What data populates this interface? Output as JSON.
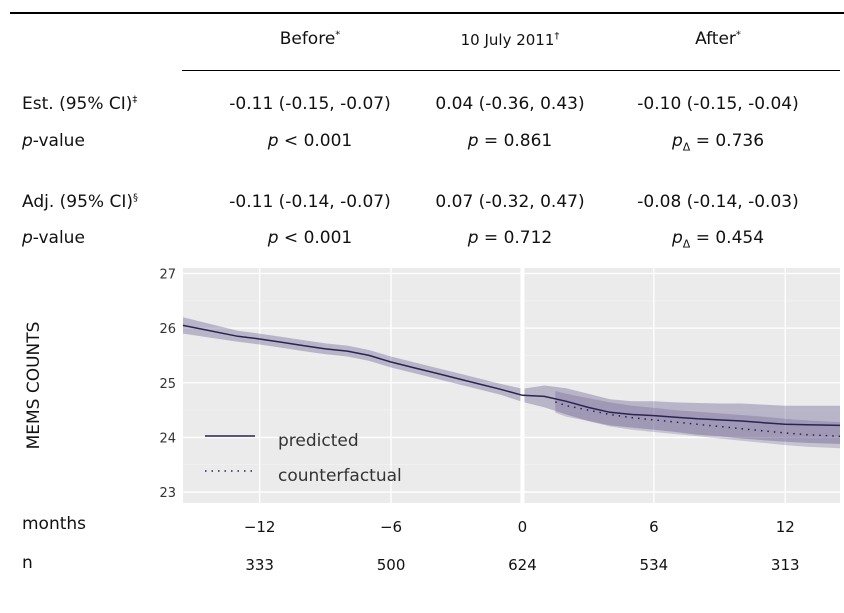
{
  "table": {
    "headers": {
      "before": "Before",
      "before_mark": "*",
      "date": "10 July 2011",
      "date_mark": "†",
      "after": "After",
      "after_mark": "*"
    },
    "est_label": "Est. (95% CI)",
    "est_mark": "‡",
    "adj_label": "Adj. (95% CI)",
    "adj_mark": "§",
    "pvalue_label_italic": "p",
    "pvalue_label_rest": "-value",
    "est": {
      "before": "-0.11 (-0.15, -0.07)",
      "date": "0.04 (-0.36, 0.43)",
      "after": "-0.10 (-0.15, -0.04)"
    },
    "est_p": {
      "before_italic": "p",
      "before_rest": " < 0.001",
      "date_italic": "p",
      "date_rest": " = 0.861",
      "after_italic": "p",
      "after_sub": "Δ",
      "after_rest": " = 0.736"
    },
    "adj": {
      "before": "-0.11 (-0.14, -0.07)",
      "date": "0.07 (-0.32, 0.47)",
      "after": "-0.08 (-0.14, -0.03)"
    },
    "adj_p": {
      "before_italic": "p",
      "before_rest": " < 0.001",
      "date_italic": "p",
      "date_rest": " = 0.712",
      "after_italic": "p",
      "after_sub": "Δ",
      "after_rest": " = 0.454"
    }
  },
  "chart_data": {
    "type": "line",
    "ylabel": "MEMS COUNTS",
    "xlabel": "months",
    "ylim": [
      22.8,
      27.1
    ],
    "xlim": [
      -15.5,
      14.5
    ],
    "y_ticks": [
      23,
      24,
      25,
      26,
      27
    ],
    "x_ticks": [
      -12,
      -6,
      0,
      6,
      12
    ],
    "x_tick_labels": [
      "−12",
      "−6",
      "0",
      "6",
      "12"
    ],
    "n_label": "n",
    "n_values": [
      "333",
      "500",
      "624",
      "534",
      "313"
    ],
    "intervention_x": 0,
    "background": "#ebebeb",
    "grid": true,
    "legend": {
      "placement": "bottom-left",
      "entries": [
        {
          "label": "predicted",
          "style": "solid"
        },
        {
          "label": "counterfactual",
          "style": "dotted"
        }
      ]
    },
    "series": [
      {
        "name": "predicted",
        "color": "#2b2352",
        "style": "solid",
        "x": [
          -15.5,
          -13,
          -12,
          -11,
          -10,
          -9,
          -8,
          -7,
          -6,
          -5,
          -4,
          -3,
          -2,
          -1,
          0,
          1,
          2,
          3,
          4,
          5,
          6,
          7,
          8,
          9,
          10,
          11,
          12,
          13,
          14.5
        ],
        "y": [
          26.05,
          25.85,
          25.8,
          25.74,
          25.68,
          25.62,
          25.58,
          25.5,
          25.38,
          25.28,
          25.18,
          25.08,
          24.98,
          24.88,
          24.77,
          24.75,
          24.66,
          24.55,
          24.46,
          24.42,
          24.4,
          24.37,
          24.34,
          24.32,
          24.3,
          24.27,
          24.24,
          24.23,
          24.22
        ],
        "lower": [
          25.9,
          25.75,
          25.7,
          25.64,
          25.58,
          25.52,
          25.48,
          25.4,
          25.28,
          25.18,
          25.08,
          24.98,
          24.88,
          24.78,
          24.65,
          24.55,
          24.42,
          24.3,
          24.22,
          24.18,
          24.14,
          24.1,
          24.05,
          24.02,
          23.98,
          23.95,
          23.92,
          23.9,
          23.88
        ],
        "upper": [
          26.2,
          25.95,
          25.9,
          25.84,
          25.78,
          25.72,
          25.68,
          25.6,
          25.48,
          25.38,
          25.28,
          25.18,
          25.08,
          24.98,
          24.89,
          24.95,
          24.9,
          24.8,
          24.7,
          24.66,
          24.66,
          24.64,
          24.63,
          24.62,
          24.62,
          24.6,
          24.58,
          24.58,
          24.58
        ]
      },
      {
        "name": "counterfactual",
        "color": "#2b2352",
        "style": "dotted",
        "x": [
          1.5,
          2,
          3,
          4,
          5,
          6,
          7,
          8,
          9,
          10,
          11,
          12,
          13,
          14.5
        ],
        "y": [
          24.65,
          24.58,
          24.5,
          24.42,
          24.36,
          24.32,
          24.28,
          24.24,
          24.2,
          24.16,
          24.12,
          24.08,
          24.05,
          24.02
        ],
        "lower": [
          24.45,
          24.38,
          24.3,
          24.2,
          24.14,
          24.1,
          24.06,
          24.02,
          23.98,
          23.94,
          23.9,
          23.86,
          23.83,
          23.8
        ],
        "upper": [
          24.85,
          24.8,
          24.72,
          24.64,
          24.58,
          24.54,
          24.5,
          24.47,
          24.44,
          24.41,
          24.38,
          24.34,
          24.31,
          24.28
        ]
      }
    ]
  }
}
